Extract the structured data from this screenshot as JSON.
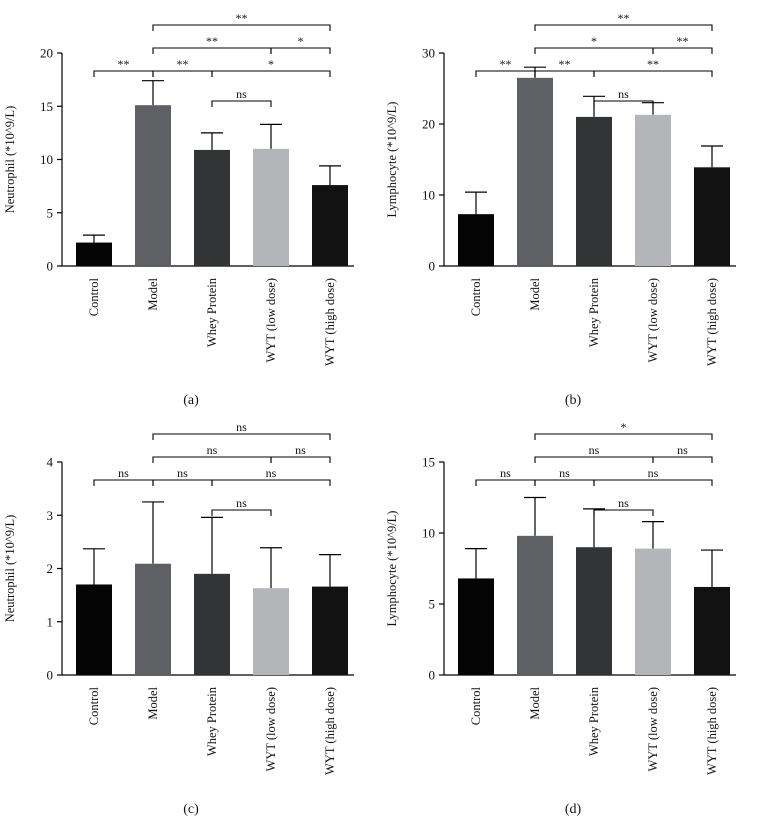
{
  "colors": {
    "Control": "#050505",
    "Model": "#5e6064",
    "Whey Protein": "#333436",
    "WYT (low dose)": "#b3b5b8",
    "WYT (high dose)": "#121212",
    "axis": "#000000"
  },
  "chart_data": [
    {
      "type": "bar",
      "panel": "(a)",
      "caption": "(a)",
      "ylabel": "Neutrophil (*10^9/L)",
      "xlabel": "",
      "categories": [
        "Control",
        "Model",
        "Whey Protein",
        "WYT (low dose)",
        "WYT (high dose)"
      ],
      "values": [
        2.2,
        15.1,
        10.9,
        11.0,
        7.6
      ],
      "errors": [
        0.7,
        2.3,
        1.6,
        2.3,
        1.8
      ],
      "ylim": [
        0,
        20
      ],
      "yticks": [
        0,
        5,
        10,
        15,
        20
      ],
      "ytick_labels": [
        "0",
        "5",
        "10",
        "15",
        "20"
      ],
      "significance": [
        {
          "from": 0,
          "to": 1,
          "label": "**",
          "level": 0
        },
        {
          "from": 1,
          "to": 2,
          "label": "**",
          "level": 0
        },
        {
          "from": 2,
          "to": 3,
          "label": "ns",
          "level": -1
        },
        {
          "from": 2,
          "to": 4,
          "label": "*",
          "level": 0
        },
        {
          "from": 1,
          "to": 3,
          "label": "**",
          "level": 1
        },
        {
          "from": 3,
          "to": 4,
          "label": "*",
          "level": 1
        },
        {
          "from": 1,
          "to": 4,
          "label": "**",
          "level": 2
        }
      ]
    },
    {
      "type": "bar",
      "panel": "(b)",
      "caption": "(b)",
      "ylabel": "Lymphocyte (*10^9/L)",
      "xlabel": "",
      "categories": [
        "Control",
        "Model",
        "Whey Protein",
        "WYT (low dose)",
        "WYT (high dose)"
      ],
      "values": [
        7.3,
        26.5,
        21.0,
        21.3,
        13.9
      ],
      "errors": [
        3.1,
        1.5,
        2.9,
        1.7,
        3.0
      ],
      "ylim": [
        0,
        30
      ],
      "yticks": [
        0,
        10,
        20,
        30
      ],
      "ytick_labels": [
        "0",
        "10",
        "20",
        "30"
      ],
      "significance": [
        {
          "from": 0,
          "to": 1,
          "label": "**",
          "level": 0
        },
        {
          "from": 1,
          "to": 2,
          "label": "**",
          "level": 0
        },
        {
          "from": 2,
          "to": 3,
          "label": "ns",
          "level": -1
        },
        {
          "from": 2,
          "to": 4,
          "label": "**",
          "level": 0
        },
        {
          "from": 1,
          "to": 3,
          "label": "*",
          "level": 1
        },
        {
          "from": 3,
          "to": 4,
          "label": "**",
          "level": 1
        },
        {
          "from": 1,
          "to": 4,
          "label": "**",
          "level": 2
        }
      ]
    },
    {
      "type": "bar",
      "panel": "(c)",
      "caption": "(c)",
      "ylabel": "Neutrophil (*10^9/L)",
      "xlabel": "",
      "categories": [
        "Control",
        "Model",
        "Whey Protein",
        "WYT (low dose)",
        "WYT (high dose)"
      ],
      "values": [
        1.7,
        2.09,
        1.9,
        1.63,
        1.66
      ],
      "errors": [
        0.67,
        1.16,
        1.06,
        0.76,
        0.6
      ],
      "ylim": [
        0,
        4
      ],
      "yticks": [
        0,
        1,
        2,
        3,
        4
      ],
      "ytick_labels": [
        "0",
        "1",
        "2",
        "3",
        "4"
      ],
      "significance": [
        {
          "from": 0,
          "to": 1,
          "label": "ns",
          "level": 0
        },
        {
          "from": 1,
          "to": 2,
          "label": "ns",
          "level": 0
        },
        {
          "from": 2,
          "to": 3,
          "label": "ns",
          "level": -1
        },
        {
          "from": 2,
          "to": 4,
          "label": "ns",
          "level": 0
        },
        {
          "from": 1,
          "to": 3,
          "label": "ns",
          "level": 1
        },
        {
          "from": 3,
          "to": 4,
          "label": "ns",
          "level": 1
        },
        {
          "from": 1,
          "to": 4,
          "label": "ns",
          "level": 2
        }
      ]
    },
    {
      "type": "bar",
      "panel": "(d)",
      "caption": "(d)",
      "ylabel": "Lymphocyte (*10^9/L)",
      "xlabel": "",
      "categories": [
        "Control",
        "Model",
        "Whey Protein",
        "WYT (low dose)",
        "WYT (high dose)"
      ],
      "values": [
        6.8,
        9.8,
        9.0,
        8.9,
        6.2
      ],
      "errors": [
        2.1,
        2.7,
        2.7,
        1.9,
        2.6
      ],
      "ylim": [
        0,
        15
      ],
      "yticks": [
        0,
        5,
        10,
        15
      ],
      "ytick_labels": [
        "0",
        "5",
        "10",
        "15"
      ],
      "significance": [
        {
          "from": 0,
          "to": 1,
          "label": "ns",
          "level": 0
        },
        {
          "from": 1,
          "to": 2,
          "label": "ns",
          "level": 0
        },
        {
          "from": 2,
          "to": 3,
          "label": "ns",
          "level": -1
        },
        {
          "from": 2,
          "to": 4,
          "label": "ns",
          "level": 0
        },
        {
          "from": 1,
          "to": 3,
          "label": "ns",
          "level": 1
        },
        {
          "from": 3,
          "to": 4,
          "label": "ns",
          "level": 1
        },
        {
          "from": 1,
          "to": 4,
          "label": "*",
          "level": 2
        }
      ]
    }
  ]
}
